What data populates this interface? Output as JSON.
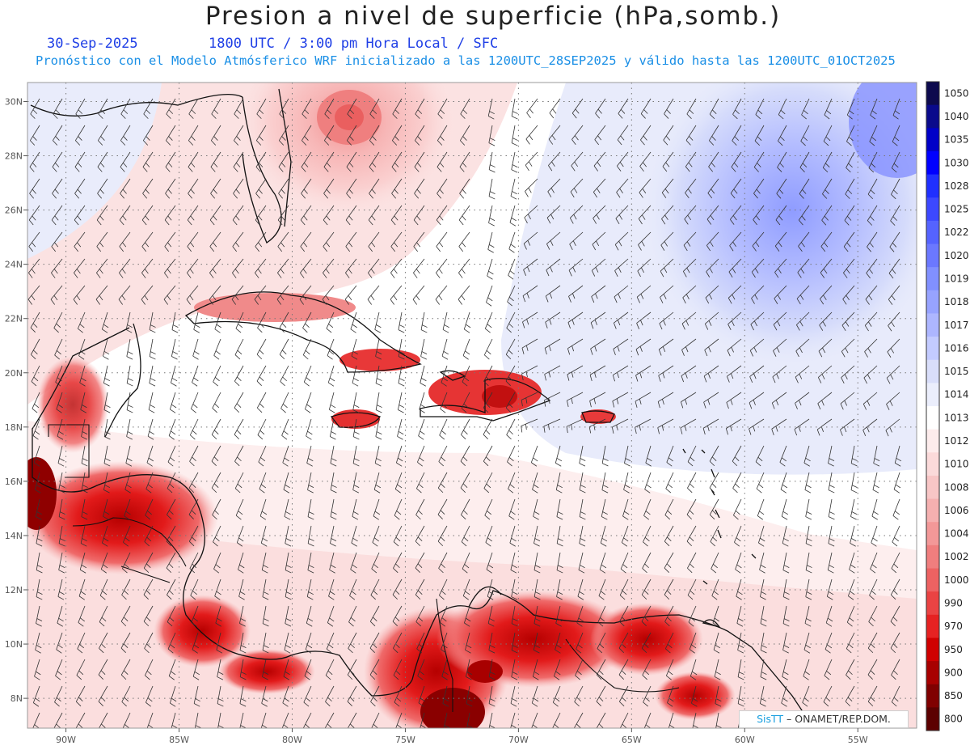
{
  "header": {
    "title": "Presion a nivel de superficie (hPa,somb.)",
    "date": "30-Sep-2025",
    "time": "1800 UTC / 3:00 pm Hora Local / SFC",
    "subtitle": "Pronóstico con el Modelo Atmósferico WRF inicializado a las 1200UTC_28SEP2025 y válido hasta las  1200UTC_01OCT2025"
  },
  "map": {
    "lon_range": [
      -91.7,
      -52.4
    ],
    "lat_range": [
      6.9,
      30.7
    ],
    "lon_ticks": [
      "90W",
      "85W",
      "80W",
      "75W",
      "70W",
      "65W",
      "60W",
      "55W"
    ],
    "lat_ticks": [
      "30N",
      "28N",
      "26N",
      "24N",
      "22N",
      "20N",
      "18N",
      "16N",
      "14N",
      "12N",
      "10N",
      "8N"
    ]
  },
  "colorbar": {
    "levels": [
      "1050",
      "1040",
      "1035",
      "1030",
      "1028",
      "1025",
      "1022",
      "1020",
      "1019",
      "1018",
      "1017",
      "1016",
      "1015",
      "1014",
      "1013",
      "1012",
      "1010",
      "1008",
      "1006",
      "1004",
      "1002",
      "1000",
      "990",
      "970",
      "950",
      "900",
      "850",
      "800"
    ],
    "colors": [
      "#0d0a4e",
      "#0a0a8c",
      "#0000c8",
      "#0000ff",
      "#2030ff",
      "#3c48ff",
      "#5563ff",
      "#6b78ff",
      "#8190ff",
      "#97a3ff",
      "#adb6ff",
      "#c3cbff",
      "#d9defa",
      "#ebeefc",
      "#ffffff",
      "#fdecec",
      "#fbdada",
      "#f8c6c6",
      "#f5b0b0",
      "#f39898",
      "#f07e7e",
      "#ed6262",
      "#ea4343",
      "#e62222",
      "#d00000",
      "#a80000",
      "#800000",
      "#5c0000"
    ]
  },
  "credit": {
    "brand": "SisTT",
    "org": "– ONAMET/REP.DOM."
  }
}
